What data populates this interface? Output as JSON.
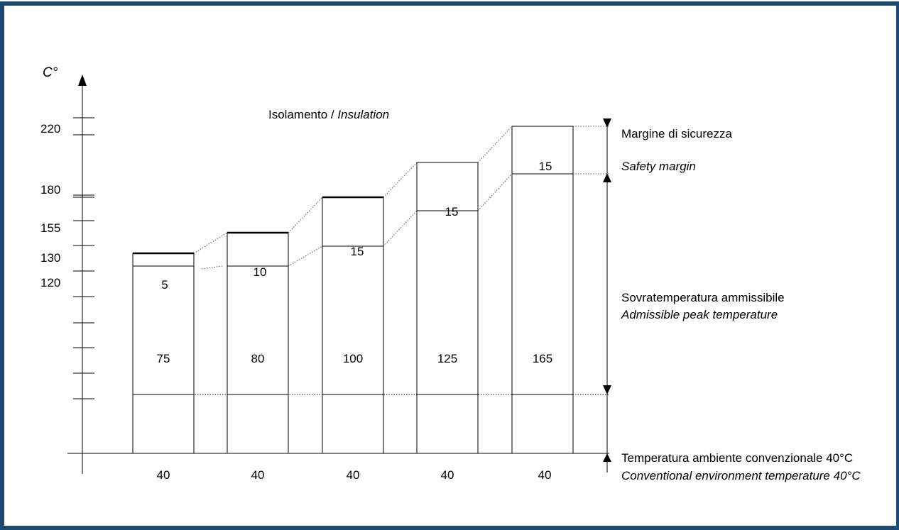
{
  "frame": {
    "border_color": "#1f4a73"
  },
  "axis": {
    "unit_label": "C°",
    "tick_labels": [
      "220",
      "180",
      "155",
      "130",
      "120"
    ]
  },
  "title": {
    "main": "Isolamento / ",
    "italic": "Insulation"
  },
  "bars": [
    {
      "ambient": "40",
      "rise": "75",
      "margin": "5"
    },
    {
      "ambient": "40",
      "rise": "80",
      "margin": "10"
    },
    {
      "ambient": "40",
      "rise": "100",
      "margin": "15"
    },
    {
      "ambient": "40",
      "rise": "125",
      "margin": "15"
    },
    {
      "ambient": "40",
      "rise": "165",
      "margin": "15"
    }
  ],
  "legend": {
    "safety_margin_it": "Margine di sicurezza",
    "safety_margin_en": "Safety margin",
    "peak_it": "Sovratemperatura ammissibile",
    "peak_en": "Admissible peak temperature",
    "ambient_it": "Temperatura ambiente convenzionale 40°C",
    "ambient_en": "Conventional environment temperature 40°C"
  }
}
